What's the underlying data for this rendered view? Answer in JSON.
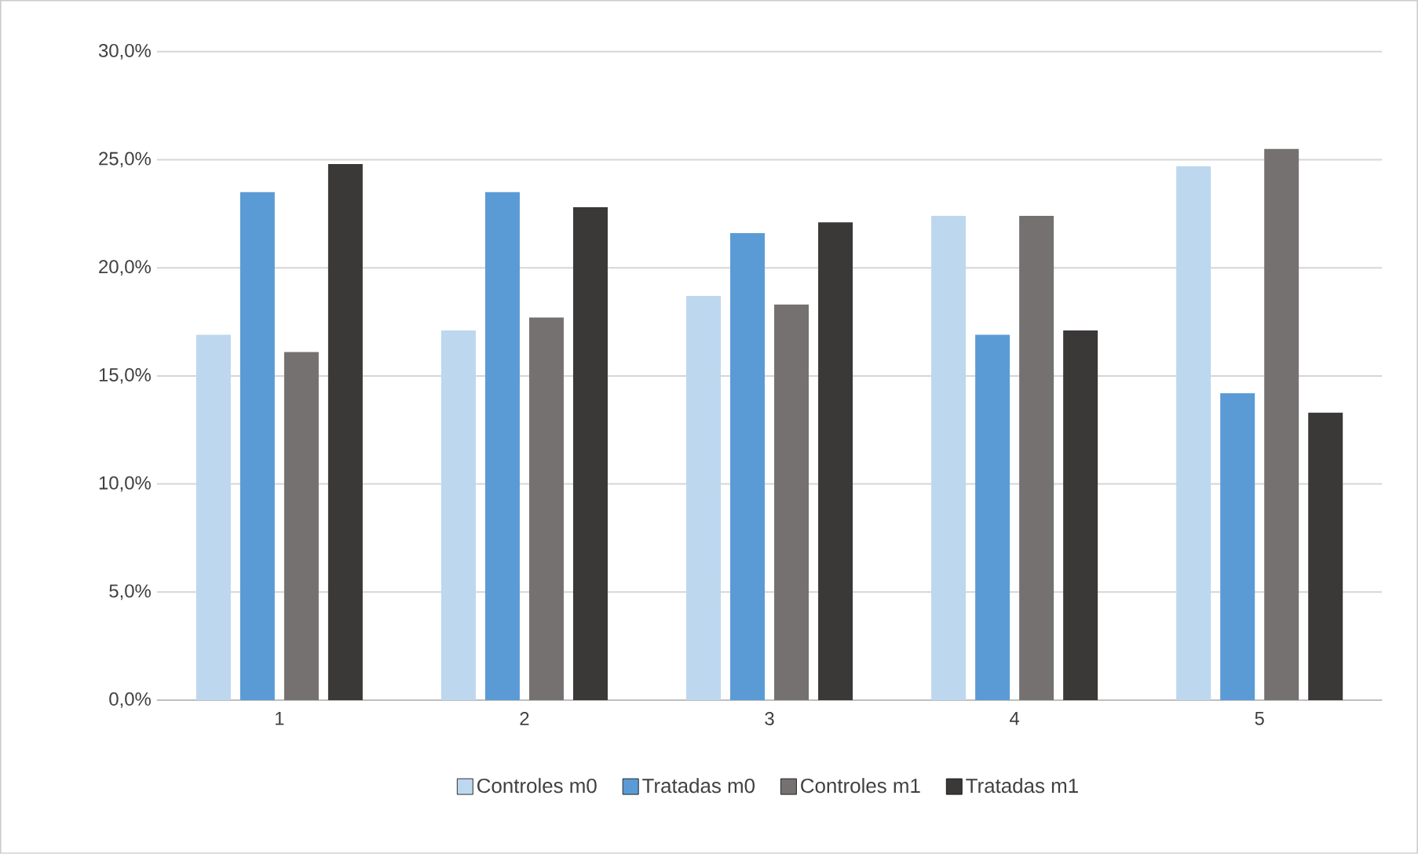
{
  "chart_data": {
    "type": "bar",
    "categories": [
      "1",
      "2",
      "3",
      "4",
      "5"
    ],
    "series": [
      {
        "name": "Controles m0",
        "color": "#bdd7ee",
        "values": [
          16.9,
          17.1,
          18.7,
          22.4,
          24.7
        ]
      },
      {
        "name": "Tratadas m0",
        "color": "#5b9bd5",
        "values": [
          23.5,
          23.5,
          21.6,
          16.9,
          14.2
        ]
      },
      {
        "name": "Controles m1",
        "color": "#767171",
        "values": [
          16.1,
          17.7,
          18.3,
          22.4,
          25.5
        ]
      },
      {
        "name": "Tratadas m1",
        "color": "#3b3838",
        "values": [
          24.8,
          22.8,
          22.1,
          17.1,
          13.3
        ]
      }
    ],
    "ylim": [
      0,
      30
    ],
    "yticks": [
      {
        "value": 0,
        "label": "0,0%"
      },
      {
        "value": 5,
        "label": "5,0%"
      },
      {
        "value": 10,
        "label": "10,0%"
      },
      {
        "value": 15,
        "label": "15,0%"
      },
      {
        "value": 20,
        "label": "20,0%"
      },
      {
        "value": 25,
        "label": "25,0%"
      },
      {
        "value": 30,
        "label": "30,0%"
      }
    ],
    "grid": "y",
    "legend": "bottom"
  }
}
